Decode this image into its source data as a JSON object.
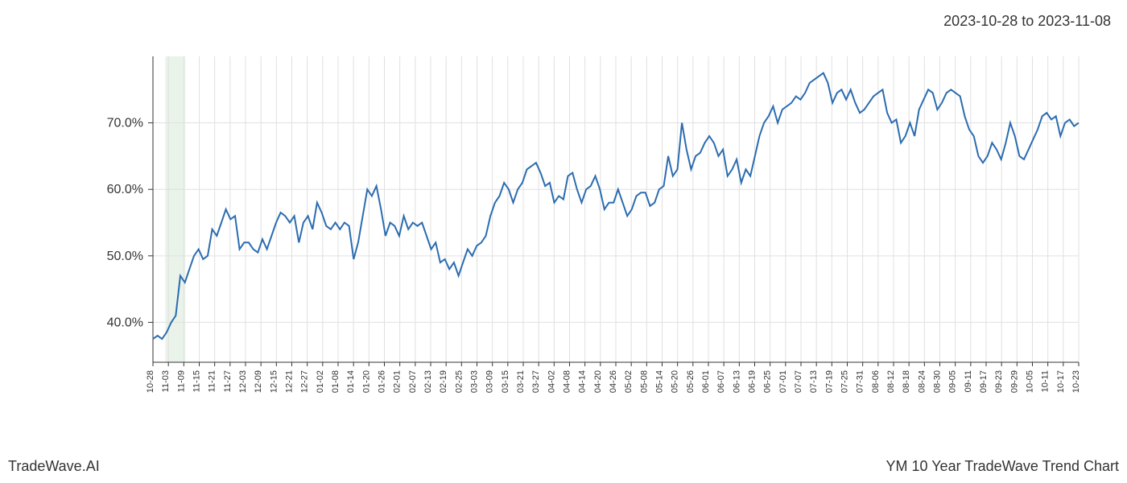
{
  "date_range_label": "2023-10-28 to 2023-11-08",
  "footer_left": "TradeWave.AI",
  "footer_right": "YM 10 Year TradeWave Trend Chart",
  "chart": {
    "type": "line",
    "background_color": "#ffffff",
    "grid_color": "#e0e0e0",
    "axis_color": "#333333",
    "line_color": "#2b6cb0",
    "line_width": 2,
    "highlight_band_color": "#d4e8d4",
    "highlight_band_opacity": 0.5,
    "highlight_start_index": 3,
    "highlight_end_index": 6,
    "ylim": [
      34,
      80
    ],
    "y_ticks": [
      40,
      50,
      60,
      70
    ],
    "y_tick_labels": [
      "40.0%",
      "50.0%",
      "60.0%",
      "70.0%"
    ],
    "y_fontsize": 16,
    "x_labels": [
      "10-28",
      "11-03",
      "11-09",
      "11-15",
      "11-21",
      "11-27",
      "12-03",
      "12-09",
      "12-15",
      "12-21",
      "12-27",
      "01-02",
      "01-08",
      "01-14",
      "01-20",
      "01-26",
      "02-01",
      "02-07",
      "02-13",
      "02-19",
      "02-25",
      "03-03",
      "03-09",
      "03-15",
      "03-21",
      "03-27",
      "04-02",
      "04-08",
      "04-14",
      "04-20",
      "04-26",
      "05-02",
      "05-08",
      "05-14",
      "05-20",
      "05-26",
      "06-01",
      "06-07",
      "06-13",
      "06-19",
      "06-25",
      "07-01",
      "07-07",
      "07-13",
      "07-19",
      "07-25",
      "07-31",
      "08-06",
      "08-12",
      "08-18",
      "08-24",
      "08-30",
      "09-05",
      "09-11",
      "09-17",
      "09-23",
      "09-29",
      "10-05",
      "10-11",
      "10-17",
      "10-23"
    ],
    "x_fontsize": 11,
    "values": [
      37.5,
      38,
      37.5,
      38.5,
      40,
      41,
      47,
      46,
      48,
      50,
      51,
      49.5,
      50,
      54,
      53,
      55,
      57,
      55.5,
      56,
      51,
      52,
      52,
      51,
      50.5,
      52.5,
      51,
      53,
      55,
      56.5,
      56,
      55,
      56,
      52,
      55,
      56,
      54,
      58,
      56.5,
      54.5,
      54,
      55,
      54,
      55,
      54.5,
      49.5,
      52,
      56,
      60,
      59,
      60.5,
      57,
      53,
      55,
      54.5,
      53,
      56,
      54,
      55,
      54.5,
      55,
      53,
      51,
      52,
      49,
      49.5,
      48,
      49,
      47,
      49,
      51,
      50,
      51.5,
      52,
      53,
      56,
      58,
      59,
      61,
      60,
      58,
      60,
      61,
      63,
      63.5,
      64,
      62.5,
      60.5,
      61,
      58,
      59,
      58.5,
      62,
      62.5,
      60,
      58,
      60,
      60.5,
      62,
      60,
      57,
      58,
      58,
      60,
      58,
      56,
      57,
      59,
      59.5,
      59.5,
      57.5,
      58,
      60,
      60.5,
      65,
      62,
      63,
      70,
      66,
      63,
      65,
      65.5,
      67,
      68,
      67,
      65,
      66,
      62,
      63,
      64.5,
      61,
      63,
      62,
      65,
      68,
      70,
      71,
      72.5,
      70,
      72,
      72.5,
      73,
      74,
      73.5,
      74.5,
      76,
      76.5,
      77,
      77.5,
      76,
      73,
      74.5,
      75,
      73.5,
      75,
      73,
      71.5,
      72,
      73,
      74,
      74.5,
      75,
      71.5,
      70,
      70.5,
      67,
      68,
      70,
      68,
      72,
      73.5,
      75,
      74.5,
      72,
      73,
      74.5,
      75,
      74.5,
      74,
      71,
      69,
      68,
      65,
      64,
      65,
      67,
      66,
      64.5,
      67,
      70,
      68,
      65,
      64.5,
      66,
      67.5,
      69,
      71,
      71.5,
      70.5,
      71,
      68,
      70,
      70.5,
      69.5,
      70
    ]
  }
}
